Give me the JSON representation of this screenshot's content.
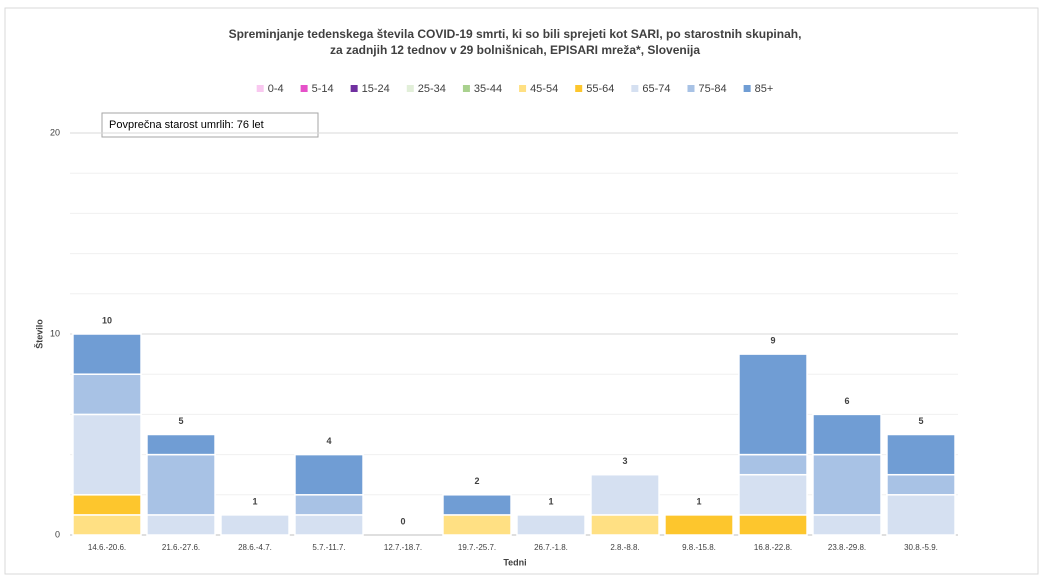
{
  "chart_data": {
    "type": "stacked_bar",
    "title": [
      "Spreminjanje tedenskega števila COVID-19 smrti, ki so bili sprejeti kot SARI, po starostnih skupinah,",
      "za zadnjih 12 tednov v 29 bolnišnicah, EPISARI mreža*, Slovenija"
    ],
    "annotation": "Povprečna starost umrlih: 76 let",
    "xlabel": "Tedni",
    "ylabel": "Število",
    "categories": [
      "14.6.-20.6.",
      "21.6.-27.6.",
      "28.6.-4.7.",
      "5.7.-11.7.",
      "12.7.-18.7.",
      "19.7.-25.7.",
      "26.7.-1.8.",
      "2.8.-8.8.",
      "9.8.-15.8.",
      "16.8.-22.8.",
      "23.8.-29.8.",
      "30.8.-5.9."
    ],
    "series": [
      {
        "name": "0-4",
        "color": "#f9c8f0",
        "values": [
          0,
          0,
          0,
          0,
          0,
          0,
          0,
          0,
          0,
          0,
          0,
          0
        ]
      },
      {
        "name": "5-14",
        "color": "#e651c9",
        "values": [
          0,
          0,
          0,
          0,
          0,
          0,
          0,
          0,
          0,
          0,
          0,
          0
        ]
      },
      {
        "name": "15-24",
        "color": "#7030a0",
        "values": [
          0,
          0,
          0,
          0,
          0,
          0,
          0,
          0,
          0,
          0,
          0,
          0
        ]
      },
      {
        "name": "25-34",
        "color": "#e2efd9",
        "values": [
          0,
          0,
          0,
          0,
          0,
          0,
          0,
          0,
          0,
          0,
          0,
          0
        ]
      },
      {
        "name": "35-44",
        "color": "#a9d18e",
        "values": [
          0,
          0,
          0,
          0,
          0,
          0,
          0,
          0,
          0,
          0,
          0,
          0
        ]
      },
      {
        "name": "45-54",
        "color": "#ffe083",
        "values": [
          1,
          0,
          0,
          0,
          0,
          1,
          0,
          1,
          0,
          0,
          0,
          0
        ]
      },
      {
        "name": "55-64",
        "color": "#fdc62d",
        "values": [
          1,
          0,
          0,
          0,
          0,
          0,
          0,
          0,
          1,
          1,
          0,
          0
        ]
      },
      {
        "name": "65-74",
        "color": "#d5e0f1",
        "values": [
          4,
          1,
          1,
          1,
          0,
          0,
          1,
          2,
          0,
          2,
          1,
          2
        ]
      },
      {
        "name": "75-84",
        "color": "#a8c2e5",
        "values": [
          2,
          3,
          0,
          1,
          0,
          0,
          0,
          0,
          0,
          1,
          3,
          1
        ]
      },
      {
        "name": "85+",
        "color": "#709dd4",
        "values": [
          2,
          1,
          0,
          2,
          0,
          1,
          0,
          0,
          0,
          5,
          2,
          2
        ]
      }
    ],
    "totals": [
      10,
      5,
      1,
      4,
      0,
      2,
      1,
      3,
      1,
      9,
      6,
      5
    ],
    "ylim": [
      0,
      20
    ],
    "yticks": [
      0,
      10,
      20
    ],
    "yminorticks": [
      2,
      4,
      6,
      8,
      12,
      14,
      16,
      18
    ],
    "grid": true
  }
}
